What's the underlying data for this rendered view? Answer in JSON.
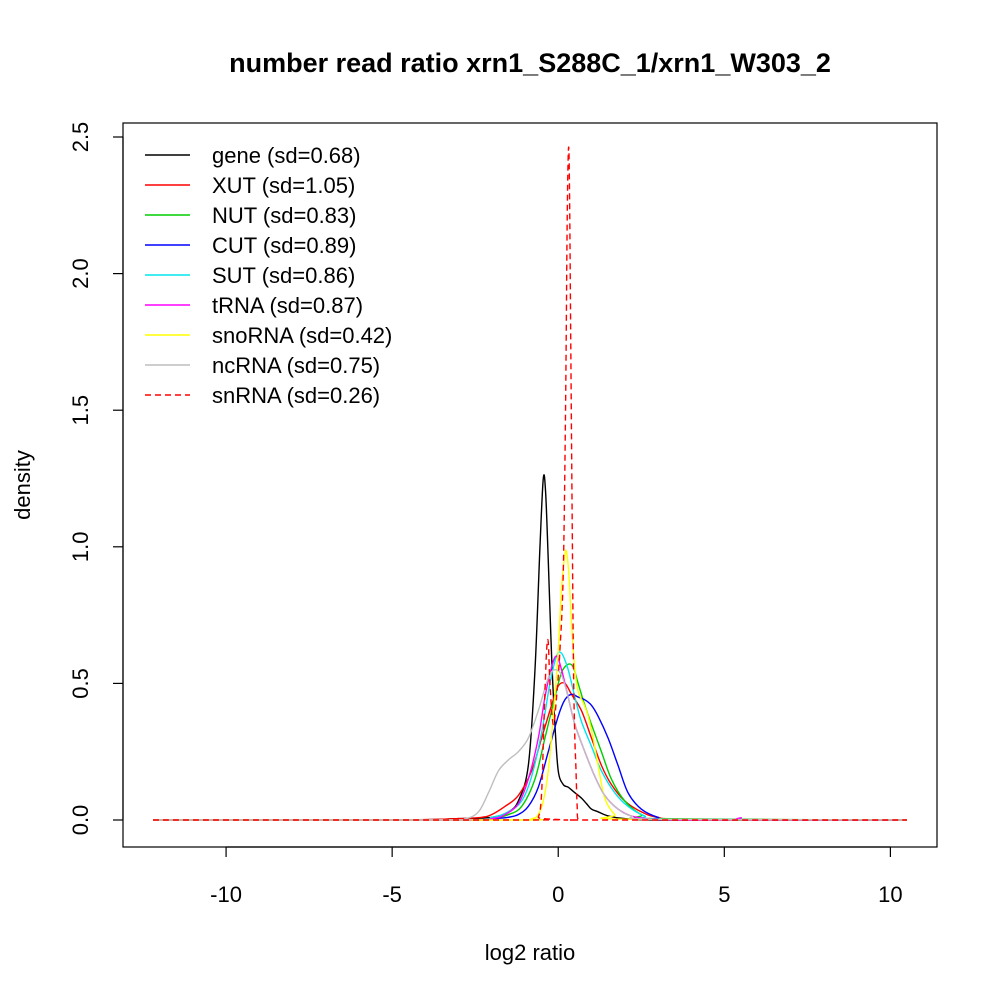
{
  "chart_data": {
    "type": "line",
    "title": "number read ratio xrn1_S288C_1/xrn1_W303_2",
    "xlabel": "log2 ratio",
    "ylabel": "density",
    "xlim": [
      -12.2,
      10.5
    ],
    "ylim": [
      0,
      2.5
    ],
    "x_ticks": [
      -10,
      -5,
      0,
      5,
      10
    ],
    "x_tick_labels": [
      "-10",
      "-5",
      "0",
      "5",
      "10"
    ],
    "y_ticks": [
      0,
      0.5,
      1,
      1.5,
      2,
      2.5
    ],
    "y_tick_labels": [
      "0.0",
      "0.5",
      "1.0",
      "1.5",
      "2.0",
      "2.5"
    ],
    "grid": false,
    "legend_position": "top-left",
    "series": [
      {
        "name": "gene (sd=0.68)",
        "color": "#000000",
        "dash": "solid",
        "x": [
          -12.2,
          -5,
          -3,
          -2,
          -1.5,
          -1.2,
          -0.9,
          -0.7,
          -0.55,
          -0.45,
          -0.38,
          -0.3,
          -0.2,
          -0.1,
          0,
          0.15,
          0.3,
          0.5,
          0.7,
          0.85,
          1.0,
          1.2,
          1.5,
          2.0,
          3.0,
          6.0,
          10.5
        ],
        "y": [
          0,
          0,
          0.005,
          0.01,
          0.03,
          0.07,
          0.2,
          0.55,
          1.0,
          1.25,
          1.2,
          0.95,
          0.6,
          0.35,
          0.18,
          0.13,
          0.12,
          0.1,
          0.08,
          0.06,
          0.04,
          0.03,
          0.015,
          0.005,
          0,
          0,
          0
        ]
      },
      {
        "name": "XUT (sd=1.05)",
        "color": "#ff0000",
        "dash": "solid",
        "x": [
          -12.2,
          -5,
          -3,
          -2.3,
          -2,
          -1.6,
          -1.2,
          -0.8,
          -0.5,
          -0.2,
          0,
          0.2,
          0.4,
          0.7,
          1.0,
          1.3,
          1.6,
          2.0,
          2.5,
          3.0,
          4.0,
          10.5
        ],
        "y": [
          0,
          0,
          0.005,
          0.01,
          0.02,
          0.05,
          0.09,
          0.18,
          0.3,
          0.42,
          0.49,
          0.5,
          0.46,
          0.4,
          0.3,
          0.2,
          0.13,
          0.07,
          0.03,
          0.01,
          0.003,
          0
        ]
      },
      {
        "name": "NUT (sd=0.83)",
        "color": "#00cd00",
        "dash": "solid",
        "x": [
          -12.2,
          -3,
          -2,
          -1.5,
          -1.1,
          -0.7,
          -0.4,
          -0.1,
          0.1,
          0.3,
          0.45,
          0.6,
          0.8,
          1.0,
          1.3,
          1.6,
          2.0,
          2.5,
          3.0,
          10.5
        ],
        "y": [
          0,
          0,
          0.005,
          0.02,
          0.05,
          0.15,
          0.3,
          0.45,
          0.54,
          0.57,
          0.56,
          0.5,
          0.42,
          0.35,
          0.25,
          0.15,
          0.07,
          0.02,
          0.005,
          0
        ]
      },
      {
        "name": "CUT (sd=0.89)",
        "color": "#0000ff",
        "dash": "solid",
        "x": [
          -12.2,
          -3,
          -2,
          -1.5,
          -1.2,
          -0.9,
          -0.6,
          -0.3,
          0,
          0.2,
          0.4,
          0.6,
          0.8,
          1.0,
          1.2,
          1.5,
          1.8,
          2.1,
          2.5,
          3.0,
          3.5,
          10.5
        ],
        "y": [
          0,
          0,
          0.005,
          0.01,
          0.02,
          0.05,
          0.12,
          0.25,
          0.38,
          0.44,
          0.46,
          0.45,
          0.44,
          0.42,
          0.38,
          0.3,
          0.2,
          0.1,
          0.04,
          0.01,
          0.002,
          0
        ]
      },
      {
        "name": "SUT (sd=0.86)",
        "color": "#00e5ee",
        "dash": "solid",
        "x": [
          -12.2,
          -3,
          -2,
          -1.5,
          -1.1,
          -0.8,
          -0.5,
          -0.25,
          -0.05,
          0.1,
          0.3,
          0.5,
          0.7,
          1.0,
          1.3,
          1.7,
          2.1,
          2.6,
          3.2,
          10.5
        ],
        "y": [
          0,
          0,
          0.01,
          0.03,
          0.07,
          0.16,
          0.32,
          0.5,
          0.6,
          0.61,
          0.55,
          0.45,
          0.36,
          0.27,
          0.18,
          0.1,
          0.05,
          0.015,
          0.003,
          0
        ]
      },
      {
        "name": "tRNA (sd=0.87)",
        "color": "#ff00ff",
        "dash": "solid",
        "x": [
          -12.2,
          -3,
          -2,
          -1.6,
          -1.2,
          -0.9,
          -0.6,
          -0.4,
          -0.2,
          -0.05,
          0.1,
          0.3,
          0.5,
          0.8,
          1.1,
          1.4,
          1.8,
          2.2,
          2.8,
          4.0,
          5.2,
          5.5,
          5.8,
          10.5
        ],
        "y": [
          0,
          0,
          0.005,
          0.02,
          0.06,
          0.15,
          0.3,
          0.45,
          0.56,
          0.6,
          0.55,
          0.45,
          0.35,
          0.25,
          0.16,
          0.09,
          0.04,
          0.015,
          0.003,
          0,
          0,
          0.008,
          0,
          0
        ]
      },
      {
        "name": "snoRNA (sd=0.42)",
        "color": "#ffff00",
        "dash": "solid",
        "x": [
          -12.2,
          -1.5,
          -0.8,
          -0.6,
          -0.45,
          -0.3,
          -0.15,
          0,
          0.1,
          0.2,
          0.25,
          0.32,
          0.4,
          0.5,
          0.6,
          0.75,
          0.9,
          1.05,
          1.2,
          1.4,
          1.7,
          2.0,
          10.5
        ],
        "y": [
          0,
          0,
          0.005,
          0.02,
          0.07,
          0.18,
          0.38,
          0.62,
          0.85,
          0.97,
          0.98,
          0.9,
          0.72,
          0.55,
          0.47,
          0.43,
          0.38,
          0.3,
          0.2,
          0.08,
          0.02,
          0.003,
          0
        ]
      },
      {
        "name": "ncRNA (sd=0.75)",
        "color": "#bebebe",
        "dash": "solid",
        "x": [
          -12.2,
          -3.5,
          -2.8,
          -2.4,
          -2.1,
          -1.8,
          -1.5,
          -1.2,
          -0.9,
          -0.6,
          -0.3,
          -0.1,
          0.1,
          0.3,
          0.5,
          0.8,
          1.1,
          1.4,
          1.8,
          2.2,
          3.0,
          10.5
        ],
        "y": [
          0,
          0,
          0.005,
          0.03,
          0.1,
          0.18,
          0.22,
          0.25,
          0.3,
          0.4,
          0.52,
          0.55,
          0.53,
          0.45,
          0.35,
          0.25,
          0.16,
          0.09,
          0.04,
          0.015,
          0.003,
          0
        ]
      },
      {
        "name": "snRNA (sd=0.26)",
        "color": "#ff0000",
        "dash": "dashed",
        "x": [
          -12.2,
          -0.8,
          -0.6,
          -0.5,
          -0.42,
          -0.35,
          -0.3,
          -0.25,
          -0.15,
          -0.05,
          0.05,
          0.15,
          0.22,
          0.27,
          0.31,
          0.34,
          0.38,
          0.42,
          0.46,
          0.5,
          0.53,
          0.57,
          0.62,
          1.0,
          10.5
        ],
        "y": [
          0,
          0,
          0.01,
          0.1,
          0.4,
          0.62,
          0.65,
          0.5,
          0.35,
          0.45,
          0.62,
          0.9,
          1.5,
          2.2,
          2.46,
          2.3,
          1.7,
          1.1,
          0.55,
          0.3,
          0.2,
          0.05,
          0,
          0,
          0
        ]
      }
    ]
  }
}
